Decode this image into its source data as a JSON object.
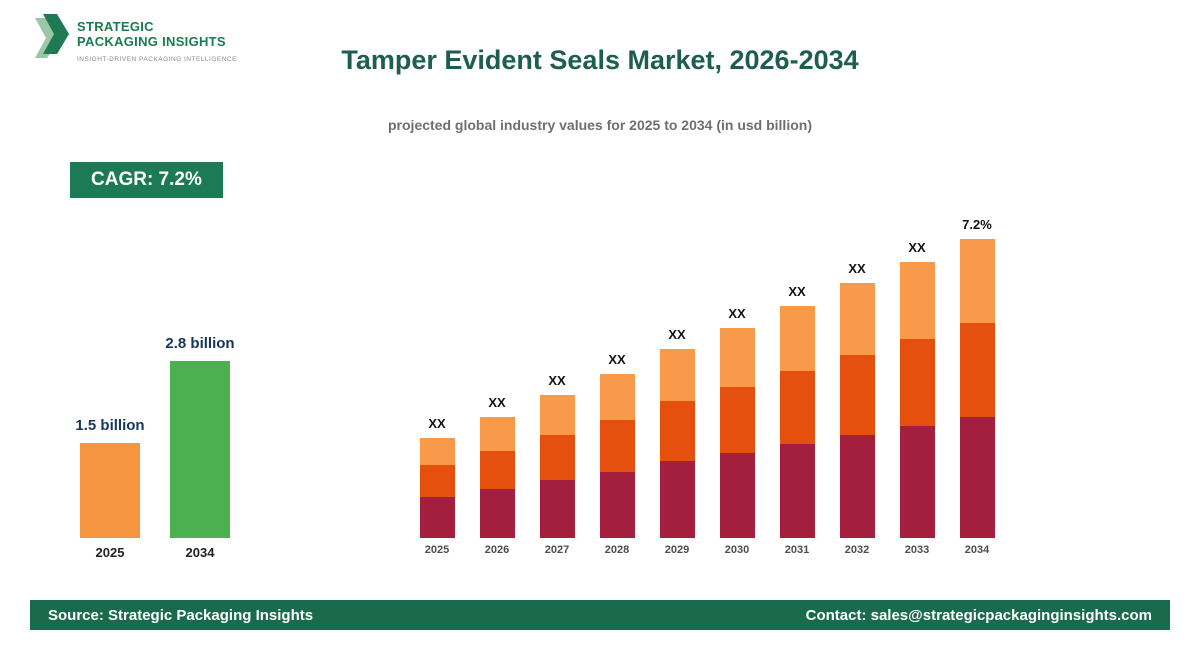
{
  "theme": {
    "title_color": "#1E5E50",
    "subtitle_color": "#6F6F6F",
    "badge_bg": "#1D7A57",
    "badge_text": "#FFFFFF",
    "footer_bg": "#1A6B4E",
    "footer_text": "#FFFFFF",
    "value_label_color": "#17365D",
    "logo_green": "#1B7A4F"
  },
  "logo": {
    "line1": "STRATEGIC",
    "line2": "PACKAGING INSIGHTS",
    "tagline": "INSIGHT-DRIVEN PACKAGING INTELLIGENCE"
  },
  "header": {
    "title": "Tamper Evident Seals Market, 2026-2034",
    "subtitle": "projected global industry values for 2025 to 2034 (in usd billion)"
  },
  "cagr_badge": "CAGR: 7.2%",
  "chart_data": [
    {
      "id": "summary",
      "type": "bar",
      "title": "",
      "categories": [
        "2025",
        "2034"
      ],
      "values": [
        1.5,
        2.8
      ],
      "value_labels": [
        "1.5 billion",
        "2.8 billion"
      ],
      "bar_colors": [
        "#F6953F",
        "#4CAF50"
      ],
      "unit": "usd billion",
      "ylim": [
        0,
        3.0
      ],
      "grid": false,
      "legend": "none"
    },
    {
      "id": "projection",
      "type": "stacked-bar",
      "title": "",
      "categories": [
        "2025",
        "2026",
        "2027",
        "2028",
        "2029",
        "2030",
        "2031",
        "2032",
        "2033",
        "2034"
      ],
      "series": [
        {
          "name": "bottom",
          "color": "#A41E3D",
          "values": [
            41,
            49,
            58,
            66,
            77,
            85,
            94,
            103,
            112,
            121
          ]
        },
        {
          "name": "middle",
          "color": "#E5500E",
          "values": [
            32,
            38,
            45,
            52,
            60,
            66,
            73,
            80,
            87,
            94
          ]
        },
        {
          "name": "top",
          "color": "#F79B4B",
          "values": [
            27,
            34,
            40,
            46,
            52,
            59,
            65,
            72,
            77,
            84
          ]
        }
      ],
      "bar_labels": [
        "XX",
        "XX",
        "XX",
        "XX",
        "XX",
        "XX",
        "XX",
        "XX",
        "XX",
        "7.2%"
      ],
      "unit": "relative units (actual values shown as XX placeholders on chart)",
      "ylim": [
        0,
        330
      ],
      "grid": false,
      "legend": "none"
    }
  ],
  "footer": {
    "source": "Source: Strategic Packaging Insights",
    "contact": "Contact: sales@strategicpackaginginsights.com"
  }
}
